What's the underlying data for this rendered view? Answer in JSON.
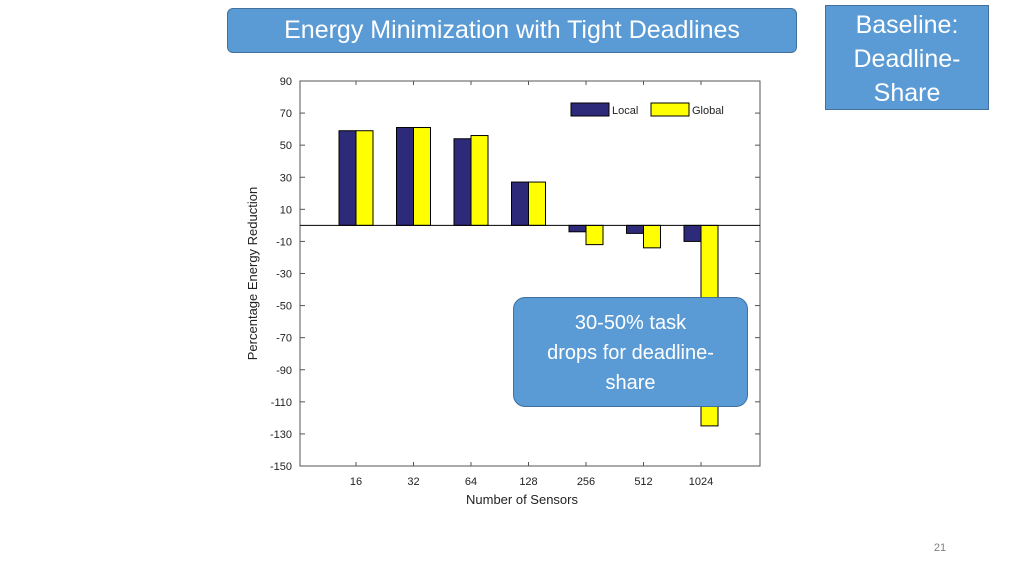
{
  "slide": {
    "title": "Energy Minimization with Tight Deadlines",
    "baseline_lines": [
      "Baseline:",
      "Deadline-",
      "Share"
    ],
    "note_lines": [
      "30-50% task",
      "drops for deadline-",
      "share"
    ],
    "page_number": "21"
  },
  "chart_data": {
    "type": "bar",
    "title": "",
    "xlabel": "Number of Sensors",
    "ylabel": "Percentage Energy Reduction",
    "categories": [
      "16",
      "32",
      "64",
      "128",
      "256",
      "512",
      "1024"
    ],
    "series": [
      {
        "name": "Local",
        "color": "#2e2a7a",
        "values": [
          59,
          61,
          54,
          27,
          -4,
          -5,
          -10
        ]
      },
      {
        "name": "Global",
        "color": "#ffff00",
        "values": [
          59,
          61,
          56,
          27,
          -12,
          -14,
          -125
        ]
      }
    ],
    "ylim": [
      -150,
      90
    ],
    "yticks": [
      90,
      70,
      50,
      30,
      10,
      -10,
      -30,
      -50,
      -70,
      -90,
      -110,
      -130,
      -150
    ],
    "grid": false,
    "legend": "top-right"
  }
}
